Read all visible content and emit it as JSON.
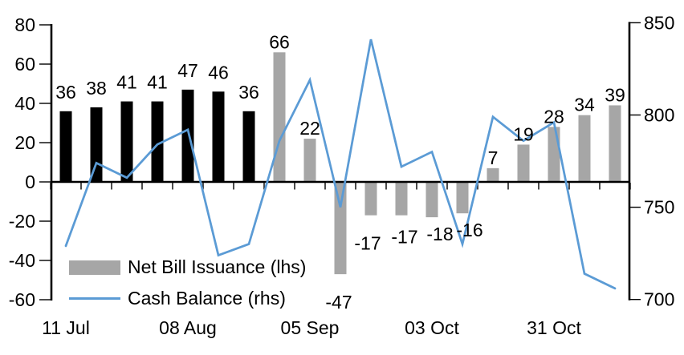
{
  "chart_data": {
    "type": "combo-bar-line",
    "title": "",
    "categories_note": "weekly data, one bar per week",
    "x_tick_labels": {
      "labels": [
        "11 Jul",
        "08 Aug",
        "05 Sep",
        "03 Oct",
        "31 Oct"
      ],
      "positions": [
        0,
        4,
        8,
        12,
        16
      ]
    },
    "series": [
      {
        "name": "Net Bill Issuance (lhs)",
        "type": "bar",
        "axis": "left",
        "values": [
          36,
          38,
          41,
          41,
          47,
          46,
          36,
          66,
          22,
          -47,
          -17,
          -17,
          -18,
          -16,
          7,
          19,
          28,
          34,
          39
        ],
        "bar_color_keys": [
          "black",
          "black",
          "black",
          "black",
          "black",
          "black",
          "black",
          "gray",
          "gray",
          "gray",
          "gray",
          "gray",
          "gray",
          "gray",
          "gray",
          "gray",
          "gray",
          "gray",
          "gray"
        ],
        "data_labels": [
          "36",
          "38",
          "41",
          "41",
          "47",
          "46",
          "36",
          "66",
          "22",
          "-47",
          "-17",
          "-17",
          "-18",
          "-16",
          "7",
          "19",
          "28",
          "34",
          "39"
        ]
      },
      {
        "name": "Cash Balance (rhs)",
        "type": "line",
        "axis": "right",
        "values": [
          729,
          774,
          766,
          784,
          792,
          724,
          730,
          786,
          819,
          750,
          841,
          772,
          780,
          730,
          799,
          786,
          796,
          714,
          706
        ]
      }
    ],
    "left_axis": {
      "min": -60,
      "max": 80,
      "ticks": [
        80,
        60,
        40,
        20,
        0,
        -20,
        -40,
        -60
      ]
    },
    "right_axis": {
      "min": 700,
      "max": 850,
      "ticks": [
        850,
        800,
        750,
        700
      ]
    },
    "legend": [
      {
        "label": "Net Bill Issuance (lhs)",
        "swatch": "bar"
      },
      {
        "label": "Cash Balance (rhs)",
        "swatch": "line"
      }
    ],
    "colors": {
      "bar_black": "#000000",
      "bar_gray": "#A6A6A6",
      "line_blue": "#5B9BD5",
      "axis": "#000000",
      "text": "#000000"
    },
    "layout_hints": {
      "grid": false,
      "legend_position": "inside-bottom-left"
    }
  }
}
